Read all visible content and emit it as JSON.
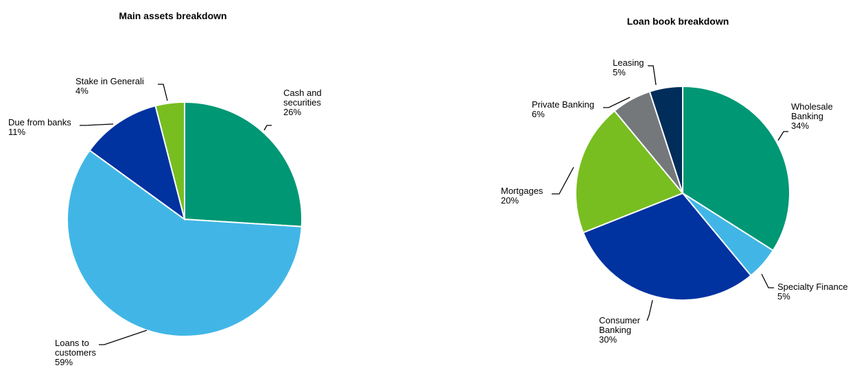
{
  "chart_data": [
    {
      "type": "pie",
      "title": "Main assets breakdown",
      "start": "12 o'clock, clockwise",
      "slices": [
        {
          "label": "Cash and securities",
          "text_lines": [
            "Cash and",
            "securities"
          ],
          "pct_label": "26%",
          "value": 26,
          "color": "#009775"
        },
        {
          "label": "Loans to customers",
          "text_lines": [
            "Loans to",
            "customers"
          ],
          "pct_label": "59%",
          "value": 59,
          "color": "#41B6E6"
        },
        {
          "label": "Due from banks",
          "text_lines": [
            "Due from banks"
          ],
          "pct_label": "11%",
          "value": 11,
          "color": "#0032A0"
        },
        {
          "label": "Stake in Generali",
          "text_lines": [
            "Stake in Generali"
          ],
          "pct_label": "4%",
          "value": 4,
          "color": "#78BE20"
        }
      ]
    },
    {
      "type": "pie",
      "title": "Loan book breakdown",
      "start": "12 o'clock, clockwise",
      "slices": [
        {
          "label": "Wholesale Banking",
          "text_lines": [
            "Wholesale",
            "Banking"
          ],
          "pct_label": "34%",
          "value": 34,
          "color": "#009775"
        },
        {
          "label": "Specialty Finance",
          "text_lines": [
            "Specialty Finance"
          ],
          "pct_label": "5%",
          "value": 5,
          "color": "#41B6E6"
        },
        {
          "label": "Consumer Banking",
          "text_lines": [
            "Consumer",
            "Banking"
          ],
          "pct_label": "30%",
          "value": 30,
          "color": "#0032A0"
        },
        {
          "label": "Mortgages",
          "text_lines": [
            "Mortgages"
          ],
          "pct_label": "20%",
          "value": 20,
          "color": "#78BE20"
        },
        {
          "label": "Private Banking",
          "text_lines": [
            "Private Banking"
          ],
          "pct_label": "6%",
          "value": 6,
          "color": "#75787B"
        },
        {
          "label": "Leasing",
          "text_lines": [
            "Leasing"
          ],
          "pct_label": "5%",
          "value": 5,
          "color": "#002D5A"
        }
      ]
    }
  ]
}
